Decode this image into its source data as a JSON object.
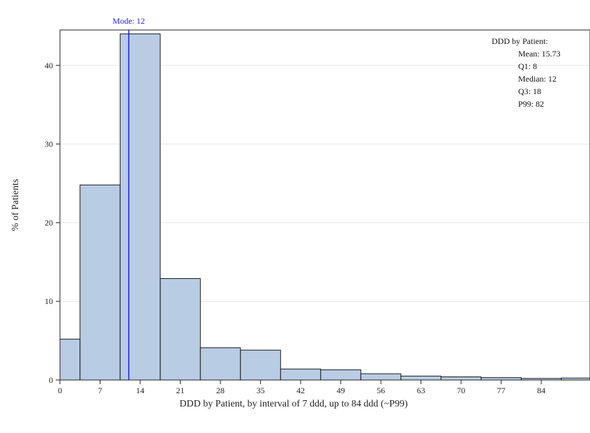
{
  "chart_data": {
    "type": "bar",
    "subtype": "histogram",
    "xlabel": "DDD by Patient, by interval of 7 ddd, up to 84 ddd (~P99)",
    "ylabel": "% of Patients",
    "xlim": [
      0,
      92.5
    ],
    "ylim": [
      0,
      44.5
    ],
    "x_ticks": [
      0,
      7,
      14,
      21,
      28,
      35,
      42,
      49,
      56,
      63,
      70,
      77,
      84
    ],
    "y_ticks": [
      0,
      10,
      20,
      30,
      40
    ],
    "bin_edges": [
      0,
      3.5,
      10.5,
      17.5,
      24.5,
      31.5,
      38.5,
      45.5,
      52.5,
      59.5,
      66.5,
      73.5,
      80.5,
      87.5,
      92.5
    ],
    "values": [
      5.2,
      24.8,
      44.0,
      12.9,
      4.1,
      3.8,
      1.4,
      1.3,
      0.8,
      0.5,
      0.4,
      0.3,
      0.2,
      0.25
    ],
    "bar_color": "#b8cce4",
    "bar_edge_color": "#1a1a1a",
    "grid": true,
    "reference_line": {
      "label": "Mode: 12",
      "x": 12,
      "color": "#1a1aff"
    },
    "stats_box": {
      "title": "DDD by Patient:",
      "lines": [
        "Mean: 15.73",
        "Q1: 8",
        "Median: 12",
        "Q3: 18",
        "P99: 82"
      ],
      "placement": "top-right"
    }
  }
}
